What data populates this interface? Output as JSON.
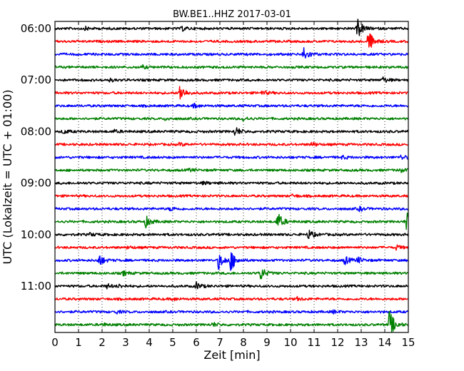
{
  "chart_data": {
    "type": "line",
    "title": "BW.BE1..HHZ 2017-03-01",
    "xlabel": "Zeit  [min]",
    "ylabel": "UTC (Lokalzeit = UTC + 01:00)",
    "xlim": [
      0,
      15
    ],
    "x_ticks": [
      "0",
      "1",
      "2",
      "3",
      "4",
      "5",
      "6",
      "7",
      "8",
      "9",
      "10",
      "11",
      "12",
      "13",
      "14",
      "15"
    ],
    "y_ticks": [
      {
        "row": 0,
        "label": "06:00"
      },
      {
        "row": 4,
        "label": "07:00"
      },
      {
        "row": 8,
        "label": "08:00"
      },
      {
        "row": 12,
        "label": "09:00"
      },
      {
        "row": 16,
        "label": "10:00"
      },
      {
        "row": 20,
        "label": "11:00"
      }
    ],
    "grid": {
      "x": "dotted",
      "y": false
    },
    "trace_interval_minutes": 15,
    "trace_colors": [
      "#000000",
      "#ff0000",
      "#0000ff",
      "#008000"
    ],
    "traces": [
      {
        "start": "06:00",
        "events": [
          {
            "t": 5.4,
            "amp": 3
          },
          {
            "t": 12.85,
            "amp": 14
          },
          {
            "t": 1.3,
            "amp": 2
          }
        ]
      },
      {
        "start": "06:15",
        "events": [
          {
            "t": 13.3,
            "amp": 16
          }
        ]
      },
      {
        "start": "06:30",
        "events": [
          {
            "t": 10.55,
            "amp": 11
          }
        ]
      },
      {
        "start": "06:45",
        "events": [
          {
            "t": 3.7,
            "amp": 2
          }
        ]
      },
      {
        "start": "07:00",
        "events": [
          {
            "t": 13.9,
            "amp": 4
          },
          {
            "t": 2.3,
            "amp": 2
          }
        ]
      },
      {
        "start": "07:15",
        "events": [
          {
            "t": 5.3,
            "amp": 12
          },
          {
            "t": 8.8,
            "amp": 3
          }
        ]
      },
      {
        "start": "07:30",
        "events": [
          {
            "t": 5.9,
            "amp": 3
          }
        ]
      },
      {
        "start": "07:45",
        "events": [
          {
            "t": 8.0,
            "amp": 3
          },
          {
            "t": 4.7,
            "amp": 2
          }
        ]
      },
      {
        "start": "08:00",
        "events": [
          {
            "t": 7.65,
            "amp": 7
          },
          {
            "t": 0.35,
            "amp": 3
          },
          {
            "t": 2.5,
            "amp": 2
          }
        ]
      },
      {
        "start": "08:15",
        "events": [
          {
            "t": 10.9,
            "amp": 3
          },
          {
            "t": 5.3,
            "amp": 2
          }
        ]
      },
      {
        "start": "08:30",
        "events": [
          {
            "t": 12.2,
            "amp": 2
          },
          {
            "t": 14.7,
            "amp": 3
          }
        ]
      },
      {
        "start": "08:45",
        "events": [
          {
            "t": 14.6,
            "amp": 3
          },
          {
            "t": 5.7,
            "amp": 2
          }
        ]
      },
      {
        "start": "09:00",
        "events": [
          {
            "t": 6.3,
            "amp": 2
          }
        ]
      },
      {
        "start": "09:15",
        "events": [
          {
            "t": 10.1,
            "amp": 2
          }
        ]
      },
      {
        "start": "09:30",
        "events": [
          {
            "t": 4.9,
            "amp": 3
          },
          {
            "t": 12.9,
            "amp": 3
          }
        ]
      },
      {
        "start": "09:45",
        "events": [
          {
            "t": 3.85,
            "amp": 8
          },
          {
            "t": 9.45,
            "amp": 13
          },
          {
            "t": 14.9,
            "amp": 15
          }
        ]
      },
      {
        "start": "10:00",
        "events": [
          {
            "t": 10.75,
            "amp": 7
          },
          {
            "t": 1.5,
            "amp": 2
          }
        ]
      },
      {
        "start": "10:15",
        "events": [
          {
            "t": 3.1,
            "amp": 2
          },
          {
            "t": 14.5,
            "amp": 3
          }
        ]
      },
      {
        "start": "10:30",
        "events": [
          {
            "t": 1.85,
            "amp": 9
          },
          {
            "t": 6.95,
            "amp": 12
          },
          {
            "t": 7.45,
            "amp": 15
          },
          {
            "t": 12.3,
            "amp": 6
          },
          {
            "t": 12.85,
            "amp": 4
          }
        ]
      },
      {
        "start": "10:45",
        "events": [
          {
            "t": 8.7,
            "amp": 11
          },
          {
            "t": 2.9,
            "amp": 3
          }
        ]
      },
      {
        "start": "11:00",
        "events": [
          {
            "t": 6.0,
            "amp": 5
          },
          {
            "t": 2.2,
            "amp": 3
          },
          {
            "t": 2.7,
            "amp": 2
          }
        ]
      },
      {
        "start": "11:15",
        "events": [
          {
            "t": 5.0,
            "amp": 2
          },
          {
            "t": 10.3,
            "amp": 2
          }
        ]
      },
      {
        "start": "11:30",
        "events": [
          {
            "t": 2.6,
            "amp": 2
          },
          {
            "t": 11.8,
            "amp": 2
          }
        ]
      },
      {
        "start": "11:45",
        "events": [
          {
            "t": 14.2,
            "amp": 20
          },
          {
            "t": 6.7,
            "amp": 3
          },
          {
            "t": 2.0,
            "amp": 2
          }
        ]
      }
    ]
  }
}
